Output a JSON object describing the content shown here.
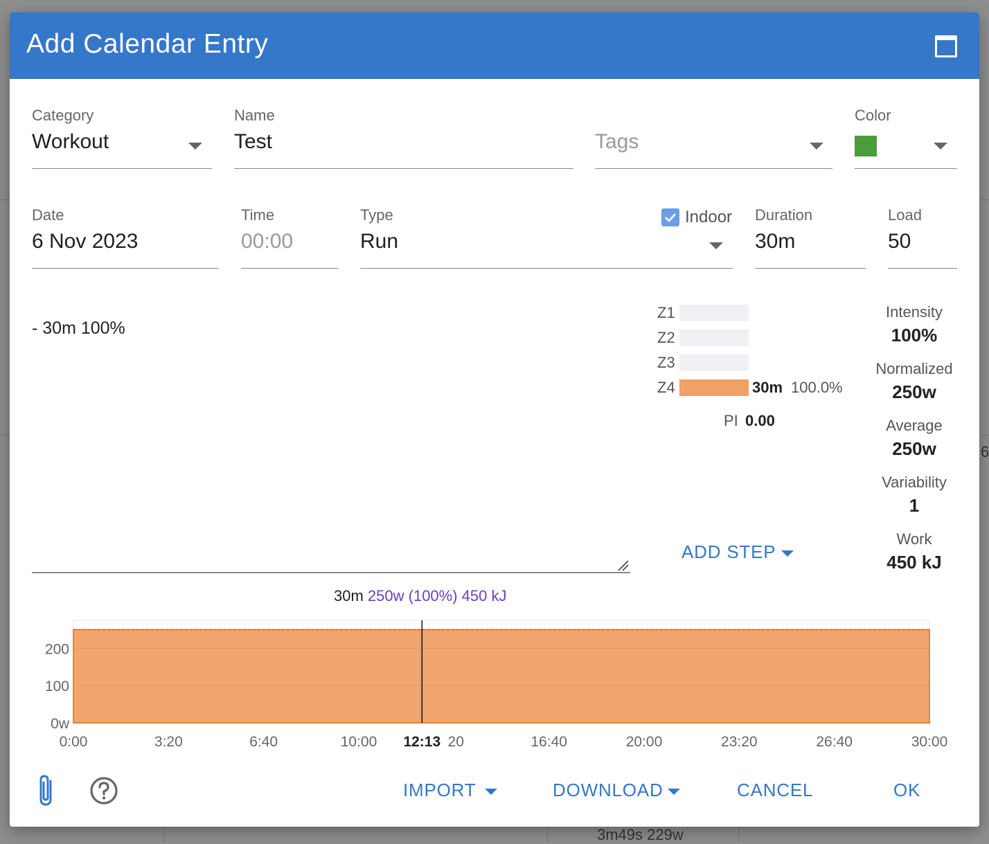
{
  "background": {
    "fragment_bottom": "3m49s 229w",
    "fragment_right": "6"
  },
  "dialog": {
    "title": "Add Calendar Entry"
  },
  "form": {
    "category": {
      "label": "Category",
      "value": "Workout"
    },
    "name": {
      "label": "Name",
      "value": "Test"
    },
    "tags": {
      "placeholder": "Tags"
    },
    "color": {
      "label": "Color",
      "value": "#4a9d3a"
    },
    "date": {
      "label": "Date",
      "value": "6 Nov 2023"
    },
    "time": {
      "label": "Time",
      "placeholder": "00:00"
    },
    "type": {
      "label": "Type",
      "value": "Run"
    },
    "indoor": {
      "label": "Indoor",
      "checked": true
    },
    "duration": {
      "label": "Duration",
      "value": "30m"
    },
    "load": {
      "label": "Load",
      "value": "50"
    }
  },
  "workout_text": "- 30m 100%",
  "zones": [
    {
      "label": "Z1",
      "fraction": 0,
      "duration": "",
      "percent": ""
    },
    {
      "label": "Z2",
      "fraction": 0,
      "duration": "",
      "percent": ""
    },
    {
      "label": "Z3",
      "fraction": 0,
      "duration": "",
      "percent": ""
    },
    {
      "label": "Z4",
      "fraction": 1,
      "duration": "30m",
      "percent": "100.0%"
    }
  ],
  "pi": {
    "label": "PI",
    "value": "0.00"
  },
  "stats": [
    {
      "label": "Intensity",
      "value": "100%"
    },
    {
      "label": "Normalized",
      "value": "250w"
    },
    {
      "label": "Average",
      "value": "250w"
    },
    {
      "label": "Variability",
      "value": "1"
    },
    {
      "label": "Work",
      "value": "450 kJ"
    }
  ],
  "add_step_label": "ADD STEP",
  "summary": {
    "duration": "30m",
    "power": "250w (100%) 450 kJ"
  },
  "chart_data": {
    "type": "area",
    "x_ticks": [
      "0:00",
      "3:20",
      "6:40",
      "10:00",
      ":20",
      "16:40",
      "20:00",
      "23:20",
      "26:40",
      "30:00"
    ],
    "y_ticks": [
      "0w",
      "100",
      "200"
    ],
    "xlim": [
      0,
      1800
    ],
    "ylim": [
      0,
      275
    ],
    "series": [
      {
        "x": [
          0,
          1800
        ],
        "y": [
          250,
          250
        ]
      }
    ],
    "cursor": {
      "x": 733,
      "label": "12:13"
    },
    "fill_color": "#f2a66f",
    "line_color": "#e8833a"
  },
  "footer": {
    "import_label": "IMPORT",
    "download_label": "DOWNLOAD",
    "cancel_label": "CANCEL",
    "ok_label": "OK"
  },
  "icons": {
    "attach": "paperclip-icon",
    "help": "help-circle-icon",
    "maximize": "maximize-icon"
  }
}
